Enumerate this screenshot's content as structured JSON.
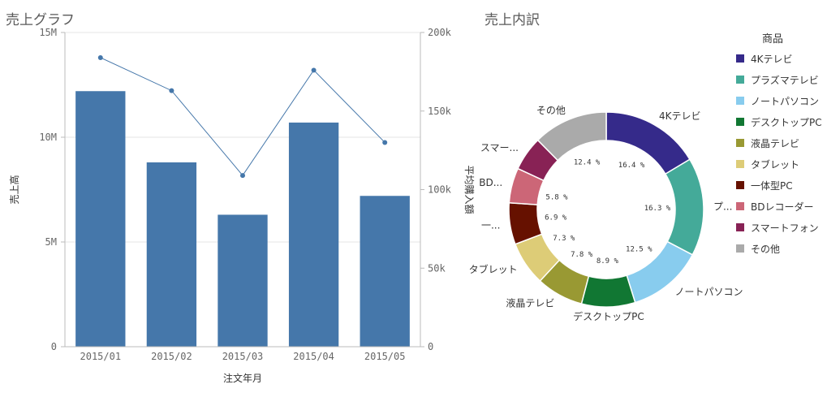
{
  "left_panel": {
    "title": "売上グラフ"
  },
  "right_panel": {
    "title": "売上内訳"
  },
  "chart_data": [
    {
      "type": "bar",
      "title": "売上グラフ",
      "xlabel": "注文年月",
      "ylabel": "売上高",
      "y2label": "平均購入額",
      "categories": [
        "2015/01",
        "2015/02",
        "2015/03",
        "2015/04",
        "2015/05"
      ],
      "ylim": [
        0,
        15000000
      ],
      "y_ticks": [
        0,
        5000000,
        10000000,
        15000000
      ],
      "y_tick_labels": [
        "0",
        "5M",
        "10M",
        "15M"
      ],
      "y2lim": [
        0,
        200000
      ],
      "y2_ticks": [
        0,
        50000,
        100000,
        150000,
        200000
      ],
      "y2_tick_labels": [
        "0",
        "50k",
        "100k",
        "150k",
        "200k"
      ],
      "grid": true,
      "series": [
        {
          "kind": "bar",
          "axis": "left",
          "values": [
            12200000,
            8800000,
            6300000,
            10700000,
            7200000
          ],
          "color": "#4577aa"
        },
        {
          "kind": "line",
          "axis": "right",
          "values": [
            184000,
            163000,
            109000,
            176000,
            130000
          ],
          "color": "#4577aa"
        }
      ]
    },
    {
      "type": "pie",
      "title": "売上内訳",
      "legend_title": "商品",
      "legend_position": "right",
      "categories": [
        "4Kテレビ",
        "プラズマテレビ",
        "ノートパソコン",
        "デスクトップPC",
        "液晶テレビ",
        "タブレット",
        "一体型PC",
        "BDレコーダー",
        "スマートフォン",
        "その他"
      ],
      "values": [
        16.4,
        16.3,
        12.5,
        8.9,
        7.8,
        7.3,
        6.9,
        5.8,
        5.7,
        12.4
      ],
      "value_labels": [
        "16.4 %",
        "16.3 %",
        "12.5 %",
        "8.9 %",
        "7.8 %",
        "7.3 %",
        "6.9 %",
        "5.8 %",
        "",
        "12.4 %"
      ],
      "outer_labels": [
        "4Kテレビ",
        "プ...",
        "ノートパソコン",
        "デスクトップPC",
        "液晶テレビ",
        "タブレット",
        "一...",
        "BD...",
        "スマー...",
        "その他"
      ],
      "colors": [
        "#352a8a",
        "#44aa99",
        "#88ccee",
        "#117733",
        "#999933",
        "#ddcc77",
        "#661100",
        "#cc6677",
        "#882255",
        "#aaaaaa"
      ]
    }
  ]
}
